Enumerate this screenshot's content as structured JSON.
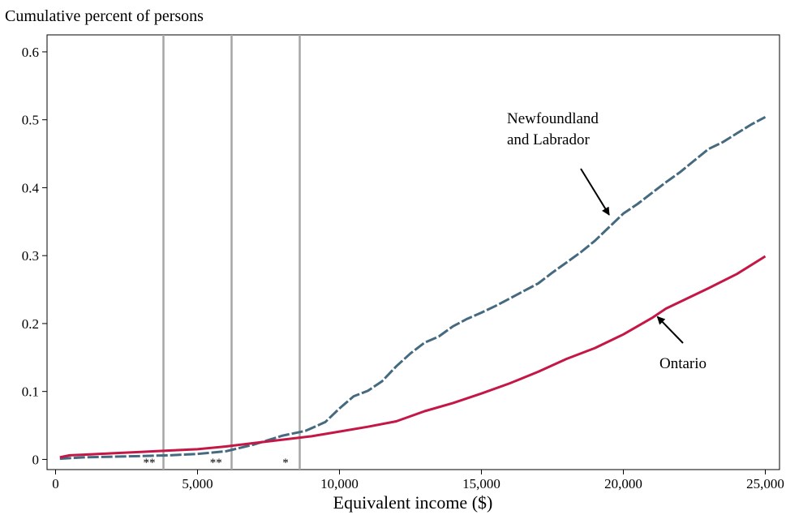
{
  "chart_data": {
    "type": "line",
    "title": "Cumulative percent of persons",
    "xlabel": "Equivalent income ($)",
    "ylabel": "",
    "xlim": [
      -300,
      25500
    ],
    "ylim": [
      -0.015,
      0.625
    ],
    "x_ticks": [
      0,
      5000,
      10000,
      15000,
      20000,
      25000
    ],
    "x_tick_labels": [
      "0",
      "5,000",
      "10,000",
      "15,000",
      "20,000",
      "25,000"
    ],
    "y_ticks": [
      0,
      0.1,
      0.2,
      0.3,
      0.4,
      0.5,
      0.6
    ],
    "y_tick_labels": [
      "0",
      "0.1",
      "0.2",
      "0.3",
      "0.4",
      "0.5",
      "0.6"
    ],
    "grid": false,
    "vertical_lines": [
      3800,
      6200,
      8600
    ],
    "significance_marks": [
      {
        "x": 3300,
        "label": "**"
      },
      {
        "x": 5650,
        "label": "**"
      },
      {
        "x": 8100,
        "label": "*"
      }
    ],
    "series": [
      {
        "name": "Newfoundland and Labrador",
        "color": "#456a80",
        "style": "dashed",
        "x": [
          150,
          1000,
          2000,
          3000,
          4000,
          5000,
          6000,
          7000,
          8000,
          8800,
          9500,
          10000,
          10500,
          11000,
          11500,
          12000,
          12500,
          13000,
          13500,
          14000,
          14500,
          15000,
          15500,
          16000,
          16500,
          17000,
          17500,
          18000,
          18500,
          19000,
          19500,
          20000,
          20500,
          21000,
          21500,
          22000,
          22500,
          23000,
          23500,
          24000,
          24500,
          25000
        ],
        "y": [
          0.001,
          0.003,
          0.004,
          0.005,
          0.006,
          0.008,
          0.012,
          0.022,
          0.035,
          0.042,
          0.055,
          0.075,
          0.093,
          0.101,
          0.115,
          0.137,
          0.156,
          0.172,
          0.181,
          0.196,
          0.207,
          0.216,
          0.226,
          0.237,
          0.248,
          0.259,
          0.275,
          0.29,
          0.305,
          0.322,
          0.342,
          0.362,
          0.376,
          0.392,
          0.408,
          0.423,
          0.44,
          0.457,
          0.467,
          0.48,
          0.493,
          0.504
        ]
      },
      {
        "name": "Ontario",
        "color": "#c41746",
        "style": "solid",
        "x": [
          150,
          500,
          1000,
          2000,
          3000,
          4000,
          5000,
          6000,
          7000,
          8000,
          9000,
          10000,
          11000,
          12000,
          13000,
          14000,
          15000,
          16000,
          17000,
          18000,
          19000,
          20000,
          21000,
          21500,
          22000,
          23000,
          24000,
          25000
        ],
        "y": [
          0.003,
          0.006,
          0.007,
          0.009,
          0.011,
          0.013,
          0.015,
          0.019,
          0.024,
          0.029,
          0.034,
          0.041,
          0.048,
          0.056,
          0.071,
          0.083,
          0.097,
          0.112,
          0.129,
          0.148,
          0.164,
          0.184,
          0.208,
          0.222,
          0.232,
          0.252,
          0.273,
          0.299
        ]
      }
    ],
    "annotations": [
      {
        "text_lines": [
          "Newfoundland",
          "and Labrador"
        ],
        "series": "Newfoundland and Labrador",
        "arrow_to": [
          19500,
          0.36
        ]
      },
      {
        "text_lines": [
          "Ontario"
        ],
        "series": "Ontario",
        "arrow_to": [
          21200,
          0.21
        ]
      }
    ]
  }
}
